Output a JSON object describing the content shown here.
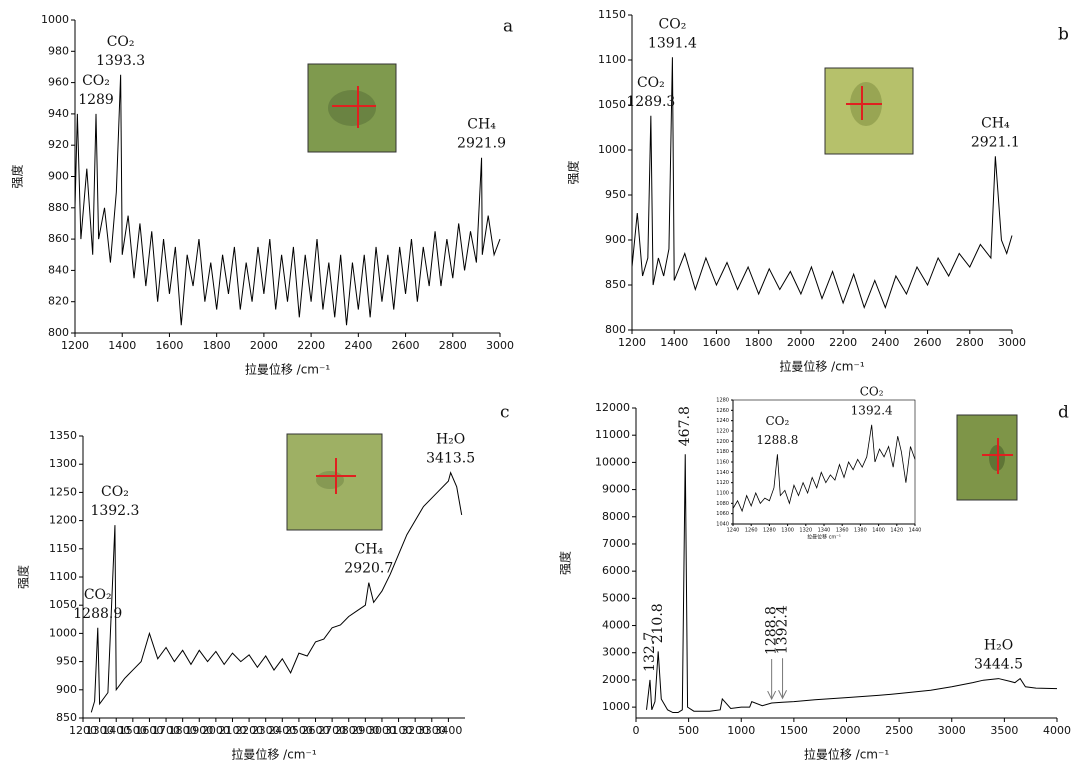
{
  "chart_data": [
    {
      "type": "line",
      "title": "a",
      "xlabel": "拉曼位移 /cm⁻¹",
      "ylabel": "强度",
      "color": "#000000",
      "xlim": [
        1200,
        3000
      ],
      "xticks": [
        1200,
        1400,
        1600,
        1800,
        2000,
        2200,
        2400,
        2600,
        2800,
        3000
      ],
      "ylim": [
        800,
        1000
      ],
      "yticks": [
        800,
        820,
        840,
        860,
        880,
        900,
        920,
        940,
        960,
        980,
        1000
      ],
      "x": [
        1200,
        1210,
        1225,
        1250,
        1275,
        1289,
        1300,
        1325,
        1350,
        1375,
        1393.3,
        1400,
        1425,
        1450,
        1475,
        1500,
        1525,
        1550,
        1575,
        1600,
        1625,
        1650,
        1675,
        1700,
        1725,
        1750,
        1775,
        1800,
        1825,
        1850,
        1875,
        1900,
        1925,
        1950,
        1975,
        2000,
        2025,
        2050,
        2075,
        2100,
        2125,
        2150,
        2175,
        2200,
        2225,
        2250,
        2275,
        2300,
        2325,
        2350,
        2375,
        2400,
        2425,
        2450,
        2475,
        2500,
        2525,
        2550,
        2575,
        2600,
        2625,
        2650,
        2675,
        2700,
        2725,
        2750,
        2775,
        2800,
        2825,
        2850,
        2875,
        2900,
        2921.9,
        2925,
        2950,
        2975,
        3000
      ],
      "values": [
        880,
        940,
        860,
        905,
        850,
        940,
        860,
        880,
        845,
        890,
        965,
        850,
        875,
        835,
        870,
        830,
        865,
        820,
        860,
        825,
        855,
        805,
        850,
        830,
        860,
        820,
        845,
        815,
        850,
        825,
        855,
        815,
        845,
        820,
        855,
        825,
        860,
        815,
        850,
        820,
        855,
        810,
        850,
        820,
        860,
        815,
        845,
        810,
        850,
        805,
        845,
        815,
        850,
        810,
        855,
        820,
        850,
        815,
        855,
        825,
        860,
        820,
        855,
        830,
        865,
        830,
        860,
        835,
        870,
        840,
        865,
        845,
        912,
        850,
        875,
        850,
        860
      ],
      "annotations": [
        {
          "label": "CO₂",
          "x": 1393.3
        },
        {
          "label": "CO₂",
          "x": 1289
        },
        {
          "label": "CH₄",
          "x": 2921.9
        }
      ]
    },
    {
      "type": "line",
      "title": "b",
      "xlabel": "拉曼位移 /cm⁻¹",
      "ylabel": "强度",
      "color": "#000000",
      "xlim": [
        1200,
        3000
      ],
      "xticks": [
        1200,
        1400,
        1600,
        1800,
        2000,
        2200,
        2400,
        2600,
        2800,
        3000
      ],
      "ylim": [
        800,
        1150
      ],
      "yticks": [
        800,
        850,
        900,
        950,
        1000,
        1050,
        1100,
        1150
      ],
      "x": [
        1200,
        1225,
        1250,
        1275,
        1289.3,
        1300,
        1325,
        1350,
        1375,
        1391.4,
        1400,
        1450,
        1500,
        1550,
        1600,
        1650,
        1700,
        1750,
        1800,
        1850,
        1900,
        1950,
        2000,
        2050,
        2100,
        2150,
        2200,
        2250,
        2300,
        2350,
        2400,
        2450,
        2500,
        2550,
        2600,
        2650,
        2700,
        2750,
        2800,
        2850,
        2900,
        2921.1,
        2950,
        2975,
        3000
      ],
      "values": [
        870,
        930,
        860,
        880,
        1038,
        850,
        880,
        860,
        890,
        1103,
        855,
        885,
        845,
        880,
        850,
        875,
        845,
        870,
        840,
        868,
        845,
        865,
        840,
        870,
        835,
        865,
        830,
        862,
        825,
        855,
        825,
        860,
        840,
        870,
        850,
        880,
        860,
        885,
        870,
        895,
        880,
        993,
        900,
        885,
        905
      ],
      "annotations": [
        {
          "label": "CO₂",
          "x": 1391.4
        },
        {
          "label": "CO₂",
          "x": 1289.3
        },
        {
          "label": "CH₄",
          "x": 2921.1
        }
      ]
    },
    {
      "type": "line",
      "title": "c",
      "xlabel": "拉曼位移 /cm⁻¹",
      "ylabel": "强度",
      "color": "#000000",
      "xlim": [
        1200,
        3500
      ],
      "xticks": [
        1200,
        1300,
        1400,
        1500,
        1600,
        1700,
        1800,
        1900,
        2000,
        2100,
        2200,
        2300,
        2400,
        2500,
        2600,
        2700,
        2800,
        2900,
        3000,
        3100,
        3200,
        3300,
        3400
      ],
      "ylim": [
        850,
        1350
      ],
      "yticks": [
        850,
        900,
        950,
        1000,
        1050,
        1100,
        1150,
        1200,
        1250,
        1300,
        1350
      ],
      "x": [
        1250,
        1270,
        1288.9,
        1300,
        1350,
        1392.3,
        1400,
        1450,
        1500,
        1550,
        1600,
        1650,
        1700,
        1750,
        1800,
        1850,
        1900,
        1950,
        2000,
        2050,
        2100,
        2150,
        2200,
        2250,
        2300,
        2350,
        2400,
        2450,
        2500,
        2550,
        2600,
        2650,
        2700,
        2750,
        2800,
        2850,
        2900,
        2920.7,
        2950,
        3000,
        3050,
        3100,
        3150,
        3200,
        3250,
        3300,
        3350,
        3400,
        3413.5,
        3450,
        3480
      ],
      "values": [
        860,
        880,
        1010,
        875,
        895,
        1192,
        900,
        920,
        935,
        950,
        1000,
        955,
        975,
        950,
        970,
        945,
        970,
        950,
        968,
        945,
        965,
        950,
        962,
        940,
        960,
        935,
        955,
        930,
        965,
        960,
        985,
        990,
        1010,
        1015,
        1030,
        1040,
        1050,
        1090,
        1055,
        1075,
        1105,
        1140,
        1175,
        1200,
        1225,
        1240,
        1255,
        1270,
        1285,
        1260,
        1210
      ],
      "annotations": [
        {
          "label": "H₂O",
          "x": 3413.5
        },
        {
          "label": "CO₂",
          "x": 1392.3
        },
        {
          "label": "CH₄",
          "x": 2920.7
        },
        {
          "label": "CO₂",
          "x": 1288.9
        }
      ]
    },
    {
      "type": "line",
      "title": "d",
      "xlabel": "拉曼位移 /cm⁻¹",
      "ylabel": "强度",
      "color": "#000000",
      "xlim": [
        0,
        4000
      ],
      "xticks": [
        0,
        500,
        1000,
        1500,
        2000,
        2500,
        3000,
        3500,
        4000
      ],
      "ylim": [
        600,
        12000
      ],
      "yticks": [
        1000,
        2000,
        3000,
        4000,
        5000,
        6000,
        7000,
        8000,
        9000,
        10000,
        11000,
        12000
      ],
      "x": [
        100,
        132.7,
        150,
        180,
        210.8,
        240,
        300,
        350,
        400,
        440,
        467.8,
        490,
        550,
        700,
        800,
        820,
        900,
        1000,
        1080,
        1100,
        1200,
        1288.8,
        1392.4,
        1500,
        1700,
        2000,
        2300,
        2500,
        2800,
        3000,
        3200,
        3300,
        3444.5,
        3550,
        3600,
        3650,
        3700,
        3800,
        4000
      ],
      "values": [
        900,
        2000,
        900,
        1200,
        3050,
        1300,
        900,
        800,
        800,
        900,
        10300,
        1000,
        850,
        850,
        900,
        1300,
        950,
        1000,
        1000,
        1200,
        1050,
        1150,
        1180,
        1200,
        1270,
        1350,
        1430,
        1500,
        1620,
        1750,
        1900,
        1990,
        2050,
        1950,
        1900,
        2050,
        1750,
        1700,
        1680
      ],
      "annotations": [
        {
          "x": 132.7,
          "rotate": true
        },
        {
          "x": 210.8,
          "rotate": true
        },
        {
          "x": 467.8,
          "rotate": true
        },
        {
          "x": 1288.8,
          "rotate": true,
          "arrow": true
        },
        {
          "x": 1392.4,
          "rotate": true,
          "arrow": true
        },
        {
          "label": "H₂O",
          "x": 3444.5
        }
      ]
    },
    {
      "type": "line",
      "xlabel": "拉曼位移 cm⁻¹",
      "color": "#000000",
      "xlim": [
        1240,
        1440
      ],
      "xticks": [
        1240,
        1260,
        1280,
        1300,
        1320,
        1340,
        1360,
        1380,
        1400,
        1420,
        1440
      ],
      "ylim": [
        1040,
        1280
      ],
      "yticks": [
        1040,
        1060,
        1080,
        1100,
        1120,
        1140,
        1160,
        1180,
        1200,
        1220,
        1240,
        1260,
        1280
      ],
      "x": [
        1240,
        1245,
        1250,
        1255,
        1260,
        1265,
        1270,
        1275,
        1280,
        1285,
        1288.8,
        1292,
        1297,
        1302,
        1307,
        1312,
        1317,
        1322,
        1327,
        1332,
        1337,
        1342,
        1347,
        1352,
        1357,
        1362,
        1367,
        1372,
        1377,
        1382,
        1387,
        1392.4,
        1396,
        1401,
        1406,
        1411,
        1416,
        1421,
        1425,
        1430,
        1435,
        1440
      ],
      "values": [
        1070,
        1085,
        1065,
        1095,
        1075,
        1100,
        1080,
        1090,
        1085,
        1110,
        1175,
        1095,
        1105,
        1080,
        1115,
        1095,
        1120,
        1100,
        1130,
        1110,
        1140,
        1120,
        1135,
        1125,
        1155,
        1130,
        1160,
        1145,
        1165,
        1150,
        1170,
        1232,
        1160,
        1185,
        1170,
        1190,
        1150,
        1210,
        1180,
        1120,
        1190,
        1165
      ],
      "annotations": [
        {
          "label": "CO₂",
          "x": 1288.8
        },
        {
          "label": "CO₂",
          "x": 1392.4
        }
      ]
    }
  ]
}
